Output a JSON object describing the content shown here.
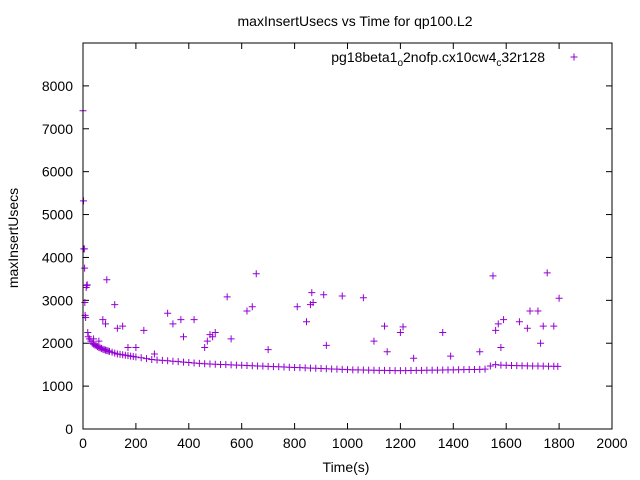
{
  "chart_data": {
    "type": "scatter",
    "title": "maxInsertUsecs vs Time for qp100.L2",
    "xlabel": "Time(s)",
    "ylabel": "maxInsertUsecs",
    "xlim": [
      0,
      2000
    ],
    "ylim": [
      0,
      9000
    ],
    "x_ticks": [
      0,
      200,
      400,
      600,
      800,
      1000,
      1200,
      1400,
      1600,
      1800,
      2000
    ],
    "y_ticks": [
      0,
      1000,
      2000,
      3000,
      4000,
      5000,
      6000,
      7000,
      8000
    ],
    "grid": false,
    "legend_position": "top-right",
    "marker": "+",
    "series": [
      {
        "name": "pg18beta1_o2nofp.cx10cw4_c32r128",
        "legend_main": "pg18beta1",
        "legend_sub1": "o",
        "legend_mid": "2nofp.cx10cw4",
        "legend_sub2": "c",
        "legend_end": "32r128",
        "color": "#9400d3",
        "points": [
          [
            0,
            7420
          ],
          [
            2,
            5320
          ],
          [
            3,
            4200
          ],
          [
            5,
            4200
          ],
          [
            6,
            3750
          ],
          [
            7,
            2950
          ],
          [
            8,
            2650
          ],
          [
            10,
            2600
          ],
          [
            12,
            3300
          ],
          [
            14,
            3350
          ],
          [
            16,
            3360
          ],
          [
            18,
            2250
          ],
          [
            20,
            2150
          ],
          [
            25,
            2100
          ],
          [
            30,
            2050
          ],
          [
            35,
            2000
          ],
          [
            40,
            1980
          ],
          [
            45,
            1960
          ],
          [
            50,
            1940
          ],
          [
            55,
            1920
          ],
          [
            60,
            1900
          ],
          [
            65,
            1890
          ],
          [
            70,
            1880
          ],
          [
            75,
            1860
          ],
          [
            80,
            1850
          ],
          [
            85,
            1840
          ],
          [
            90,
            1830
          ],
          [
            95,
            1820
          ],
          [
            100,
            1810
          ],
          [
            110,
            1790
          ],
          [
            120,
            1770
          ],
          [
            130,
            1750
          ],
          [
            140,
            1740
          ],
          [
            150,
            1730
          ],
          [
            160,
            1720
          ],
          [
            170,
            1710
          ],
          [
            180,
            1700
          ],
          [
            190,
            1690
          ],
          [
            200,
            1680
          ],
          [
            220,
            1660
          ],
          [
            240,
            1640
          ],
          [
            260,
            1620
          ],
          [
            280,
            1610
          ],
          [
            300,
            1600
          ],
          [
            320,
            1590
          ],
          [
            340,
            1580
          ],
          [
            360,
            1570
          ],
          [
            380,
            1560
          ],
          [
            400,
            1550
          ],
          [
            420,
            1540
          ],
          [
            440,
            1530
          ],
          [
            460,
            1520
          ],
          [
            480,
            1515
          ],
          [
            500,
            1510
          ],
          [
            520,
            1505
          ],
          [
            540,
            1500
          ],
          [
            560,
            1495
          ],
          [
            580,
            1490
          ],
          [
            600,
            1485
          ],
          [
            620,
            1480
          ],
          [
            640,
            1475
          ],
          [
            660,
            1470
          ],
          [
            680,
            1465
          ],
          [
            700,
            1460
          ],
          [
            720,
            1455
          ],
          [
            740,
            1450
          ],
          [
            760,
            1445
          ],
          [
            780,
            1440
          ],
          [
            800,
            1435
          ],
          [
            820,
            1430
          ],
          [
            840,
            1425
          ],
          [
            860,
            1420
          ],
          [
            880,
            1415
          ],
          [
            900,
            1410
          ],
          [
            920,
            1405
          ],
          [
            940,
            1400
          ],
          [
            960,
            1395
          ],
          [
            980,
            1390
          ],
          [
            1000,
            1385
          ],
          [
            1020,
            1380
          ],
          [
            1040,
            1378
          ],
          [
            1060,
            1375
          ],
          [
            1080,
            1372
          ],
          [
            1100,
            1370
          ],
          [
            1120,
            1368
          ],
          [
            1140,
            1366
          ],
          [
            1160,
            1364
          ],
          [
            1180,
            1362
          ],
          [
            1200,
            1360
          ],
          [
            1220,
            1362
          ],
          [
            1240,
            1364
          ],
          [
            1260,
            1366
          ],
          [
            1280,
            1368
          ],
          [
            1300,
            1370
          ],
          [
            1320,
            1372
          ],
          [
            1340,
            1374
          ],
          [
            1360,
            1376
          ],
          [
            1380,
            1378
          ],
          [
            1400,
            1380
          ],
          [
            1420,
            1382
          ],
          [
            1440,
            1384
          ],
          [
            1460,
            1386
          ],
          [
            1480,
            1388
          ],
          [
            1500,
            1390
          ],
          [
            1520,
            1395
          ],
          [
            1540,
            1470
          ],
          [
            1560,
            1500
          ],
          [
            1580,
            1490
          ],
          [
            1600,
            1485
          ],
          [
            1620,
            1480
          ],
          [
            1640,
            1478
          ],
          [
            1660,
            1475
          ],
          [
            1680,
            1472
          ],
          [
            1700,
            1470
          ],
          [
            1720,
            1468
          ],
          [
            1740,
            1466
          ],
          [
            1760,
            1464
          ],
          [
            1780,
            1462
          ],
          [
            1795,
            1460
          ],
          [
            40,
            2100
          ],
          [
            60,
            2050
          ],
          [
            90,
            3480
          ],
          [
            75,
            2550
          ],
          [
            85,
            2450
          ],
          [
            120,
            2900
          ],
          [
            130,
            2350
          ],
          [
            150,
            2400
          ],
          [
            170,
            1900
          ],
          [
            200,
            1900
          ],
          [
            230,
            2300
          ],
          [
            270,
            1750
          ],
          [
            320,
            2700
          ],
          [
            340,
            2450
          ],
          [
            370,
            2550
          ],
          [
            380,
            2150
          ],
          [
            420,
            2550
          ],
          [
            460,
            1900
          ],
          [
            470,
            2050
          ],
          [
            480,
            2200
          ],
          [
            490,
            2150
          ],
          [
            500,
            2250
          ],
          [
            545,
            3080
          ],
          [
            560,
            2100
          ],
          [
            620,
            2750
          ],
          [
            640,
            2850
          ],
          [
            655,
            3620
          ],
          [
            700,
            1850
          ],
          [
            810,
            2850
          ],
          [
            845,
            2500
          ],
          [
            860,
            2900
          ],
          [
            865,
            3180
          ],
          [
            870,
            2950
          ],
          [
            910,
            3130
          ],
          [
            920,
            1950
          ],
          [
            980,
            3100
          ],
          [
            1060,
            3060
          ],
          [
            1100,
            2050
          ],
          [
            1140,
            2400
          ],
          [
            1150,
            1800
          ],
          [
            1200,
            2250
          ],
          [
            1210,
            2380
          ],
          [
            1250,
            1650
          ],
          [
            1360,
            2250
          ],
          [
            1390,
            1700
          ],
          [
            1500,
            1800
          ],
          [
            1550,
            3570
          ],
          [
            1560,
            2300
          ],
          [
            1570,
            2450
          ],
          [
            1580,
            1900
          ],
          [
            1590,
            2550
          ],
          [
            1650,
            2500
          ],
          [
            1680,
            2350
          ],
          [
            1690,
            2750
          ],
          [
            1720,
            2750
          ],
          [
            1730,
            2000
          ],
          [
            1740,
            2400
          ],
          [
            1755,
            3640
          ],
          [
            1780,
            2400
          ],
          [
            1800,
            3050
          ]
        ]
      }
    ]
  }
}
